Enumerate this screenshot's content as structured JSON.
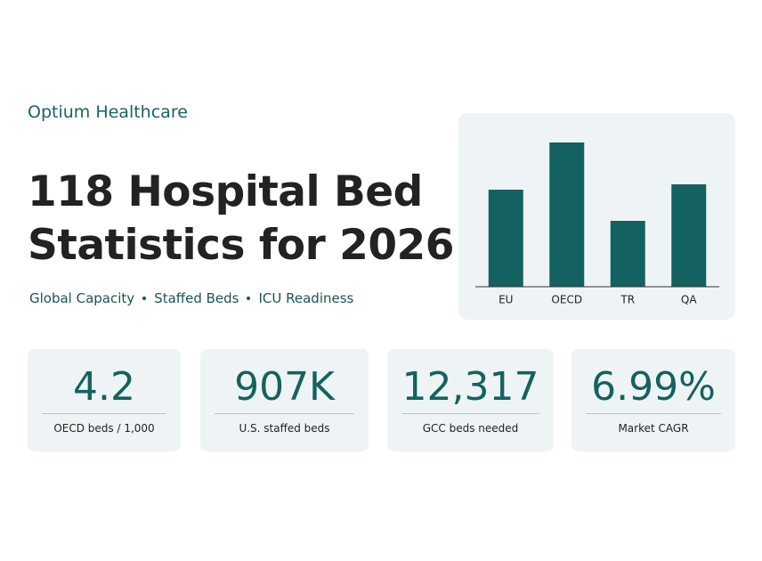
{
  "brand": "Optium Healthcare",
  "title": [
    "118 Hospital Bed",
    "Statistics for 2026"
  ],
  "subtitle": [
    "Global Capacity",
    "Staffed Beds",
    "ICU Readiness"
  ],
  "chart_data": {
    "type": "bar",
    "categories": [
      "EU",
      "OECD",
      "TR",
      "QA"
    ],
    "values": [
      109,
      162,
      74,
      115
    ],
    "color": "#14625f",
    "ylim": [
      0,
      177
    ]
  },
  "stats": [
    {
      "value": "4.2",
      "label": "OECD beds / 1,000"
    },
    {
      "value": "907K",
      "label": "U.S. staffed beds"
    },
    {
      "value": "12,317",
      "label": "GCC beds needed"
    },
    {
      "value": "6.99%",
      "label": "Market CAGR"
    }
  ]
}
